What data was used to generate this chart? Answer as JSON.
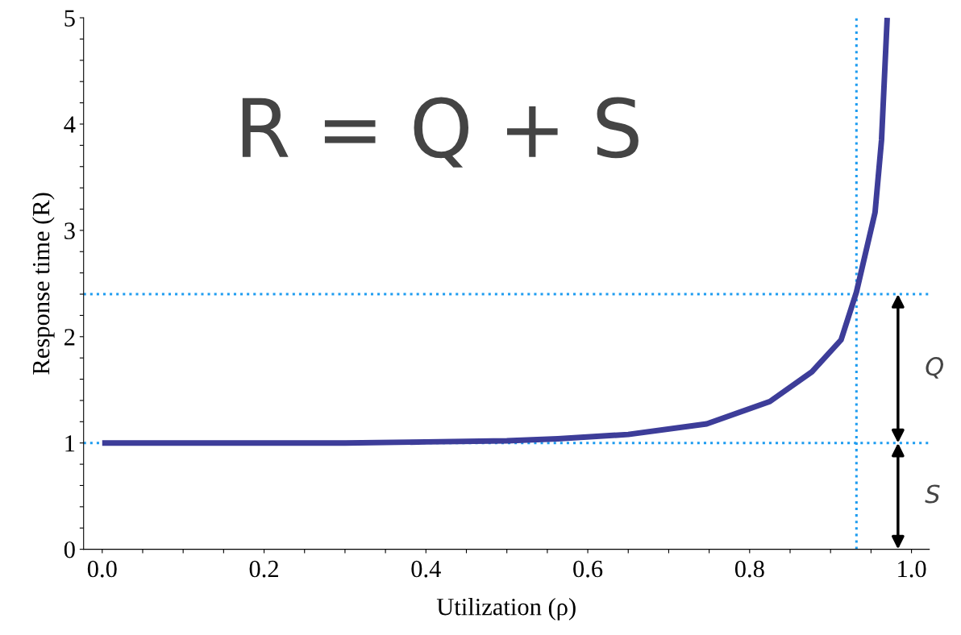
{
  "chart_data": {
    "type": "line",
    "xlabel": "Utilization (ρ)",
    "ylabel": "Response time (R)",
    "x": [
      0,
      0.1,
      0.2,
      0.3,
      0.4,
      0.5,
      0.563,
      0.65,
      0.747,
      0.825,
      0.877,
      0.913,
      0.932,
      0.955,
      0.963,
      0.97
    ],
    "series": [
      {
        "color": "#3d3d99",
        "values": [
          1,
          1,
          1,
          1,
          1.01,
          1.02,
          1.04,
          1.08,
          1.18,
          1.39,
          1.67,
          1.97,
          2.42,
          3.17,
          3.85,
          5.0
        ]
      }
    ],
    "xlim": [
      -0.023,
      1.022
    ],
    "ylim": [
      0,
      5
    ],
    "xticks": [
      {
        "value": 0,
        "label": "0.0"
      },
      {
        "value": 0.05,
        "label": null
      },
      {
        "value": 0.1,
        "label": null
      },
      {
        "value": 0.15,
        "label": null
      },
      {
        "value": 0.2,
        "label": "0.2"
      },
      {
        "value": 0.25,
        "label": null
      },
      {
        "value": 0.3,
        "label": null
      },
      {
        "value": 0.35,
        "label": null
      },
      {
        "value": 0.4,
        "label": "0.4"
      },
      {
        "value": 0.45,
        "label": null
      },
      {
        "value": 0.5,
        "label": null
      },
      {
        "value": 0.55,
        "label": null
      },
      {
        "value": 0.6,
        "label": "0.6"
      },
      {
        "value": 0.65,
        "label": null
      },
      {
        "value": 0.7,
        "label": null
      },
      {
        "value": 0.75,
        "label": null
      },
      {
        "value": 0.8,
        "label": "0.8"
      },
      {
        "value": 0.85,
        "label": null
      },
      {
        "value": 0.9,
        "label": null
      },
      {
        "value": 0.95,
        "label": null
      },
      {
        "value": 1,
        "label": "1.0"
      }
    ],
    "yticks": [
      0,
      {
        "value": 0.2,
        "label": null
      },
      {
        "value": 0.4,
        "label": null
      },
      {
        "value": 0.6,
        "label": null
      },
      {
        "value": 0.8,
        "label": null
      },
      1,
      {
        "value": 1.2,
        "label": null
      },
      {
        "value": 1.4,
        "label": null
      },
      {
        "value": 1.6,
        "label": null
      },
      {
        "value": 1.8,
        "label": null
      },
      2,
      {
        "value": 2.2,
        "label": null
      },
      {
        "value": 2.4,
        "label": null
      },
      {
        "value": 2.6,
        "label": null
      },
      {
        "value": 2.8,
        "label": null
      },
      3,
      {
        "value": 3.2,
        "label": null
      },
      {
        "value": 3.4,
        "label": null
      },
      {
        "value": 3.6,
        "label": null
      },
      {
        "value": 3.8,
        "label": null
      },
      4,
      {
        "value": 4.2,
        "label": null
      },
      {
        "value": 4.4,
        "label": null
      },
      {
        "value": 4.6,
        "label": null
      },
      {
        "value": 4.8,
        "label": null
      },
      5
    ],
    "ref_lines": [
      {
        "axis": "y",
        "value": 2.4,
        "color": "#1e9cf0",
        "line_style": "dotted"
      },
      {
        "axis": "y",
        "value": 1,
        "color": "#1e9cf0",
        "line_style": "dotted"
      },
      {
        "axis": "x",
        "value": 0.932,
        "color": "#1e9cf0",
        "line_style": "dotted"
      }
    ],
    "annotations": [
      "R = Q + S",
      "Q",
      "S"
    ],
    "grid": false,
    "legend": false,
    "marker": "none",
    "line_style": "solid"
  }
}
